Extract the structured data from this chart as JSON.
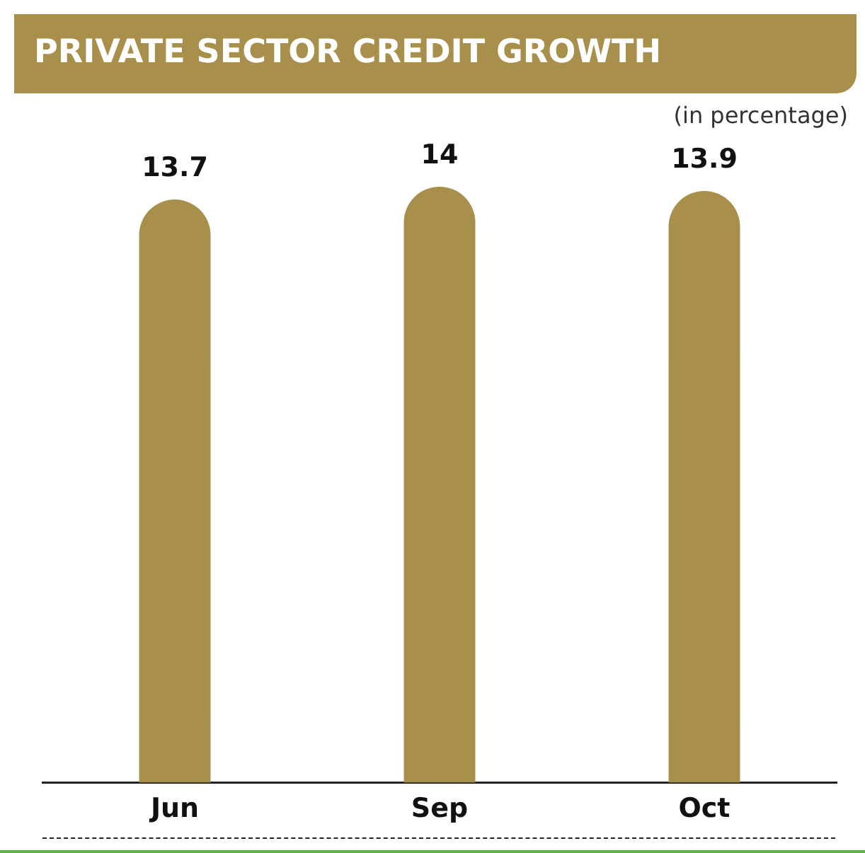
{
  "chart_data": {
    "type": "bar",
    "title": "PRIVATE SECTOR CREDIT GROWTH",
    "subtitle": "(in percentage)",
    "categories": [
      "Jun",
      "Sep",
      "Oct"
    ],
    "values": [
      13.7,
      14,
      13.9
    ],
    "color": "#a88f4c",
    "data_labels": true,
    "grid": false,
    "legend": false
  }
}
